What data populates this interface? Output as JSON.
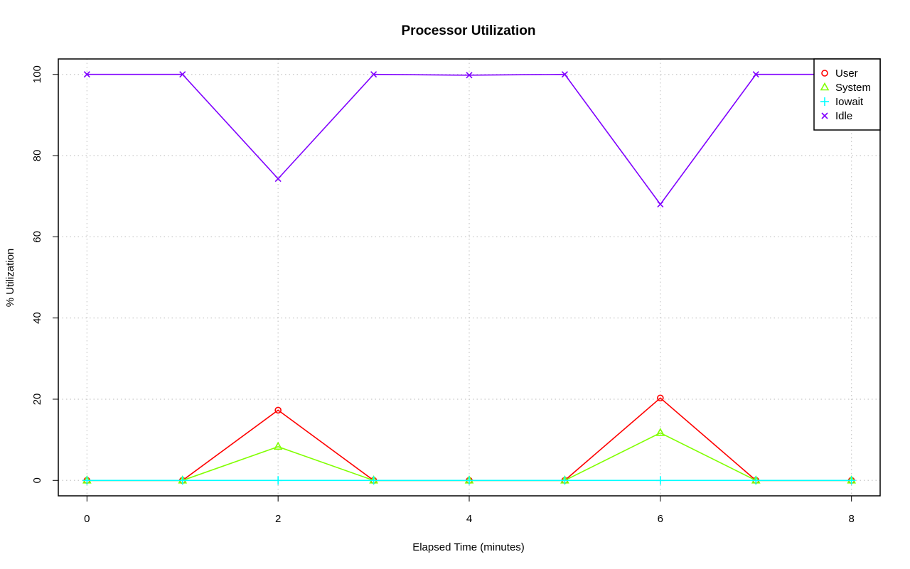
{
  "chart_data": {
    "type": "line",
    "title": "Processor Utilization",
    "xlabel": "Elapsed Time (minutes)",
    "ylabel": "% Utilization",
    "xlim": [
      -0.3,
      8.3
    ],
    "ylim": [
      -3.8,
      103.8
    ],
    "xticks": [
      0,
      2,
      4,
      6,
      8
    ],
    "yticks": [
      0,
      20,
      40,
      60,
      80,
      100
    ],
    "grid": true,
    "legend_position": "top-right",
    "x": [
      0,
      1,
      2,
      3,
      4,
      5,
      6,
      7,
      8
    ],
    "series": [
      {
        "name": "User",
        "color": "#FF0000",
        "marker": "circle",
        "values": [
          0,
          0,
          17.3,
          0,
          0,
          0,
          20.3,
          0,
          0
        ]
      },
      {
        "name": "System",
        "color": "#80FF00",
        "marker": "triangle",
        "values": [
          0,
          0,
          8.3,
          0,
          0,
          0,
          11.7,
          0,
          0
        ]
      },
      {
        "name": "Iowait",
        "color": "#00FFFF",
        "marker": "plus",
        "values": [
          0,
          0,
          0,
          0,
          0,
          0,
          0,
          0,
          0
        ]
      },
      {
        "name": "Idle",
        "color": "#8000FF",
        "marker": "cross",
        "values": [
          100,
          100,
          74.3,
          100,
          99.8,
          100,
          68,
          100,
          100
        ]
      }
    ]
  }
}
